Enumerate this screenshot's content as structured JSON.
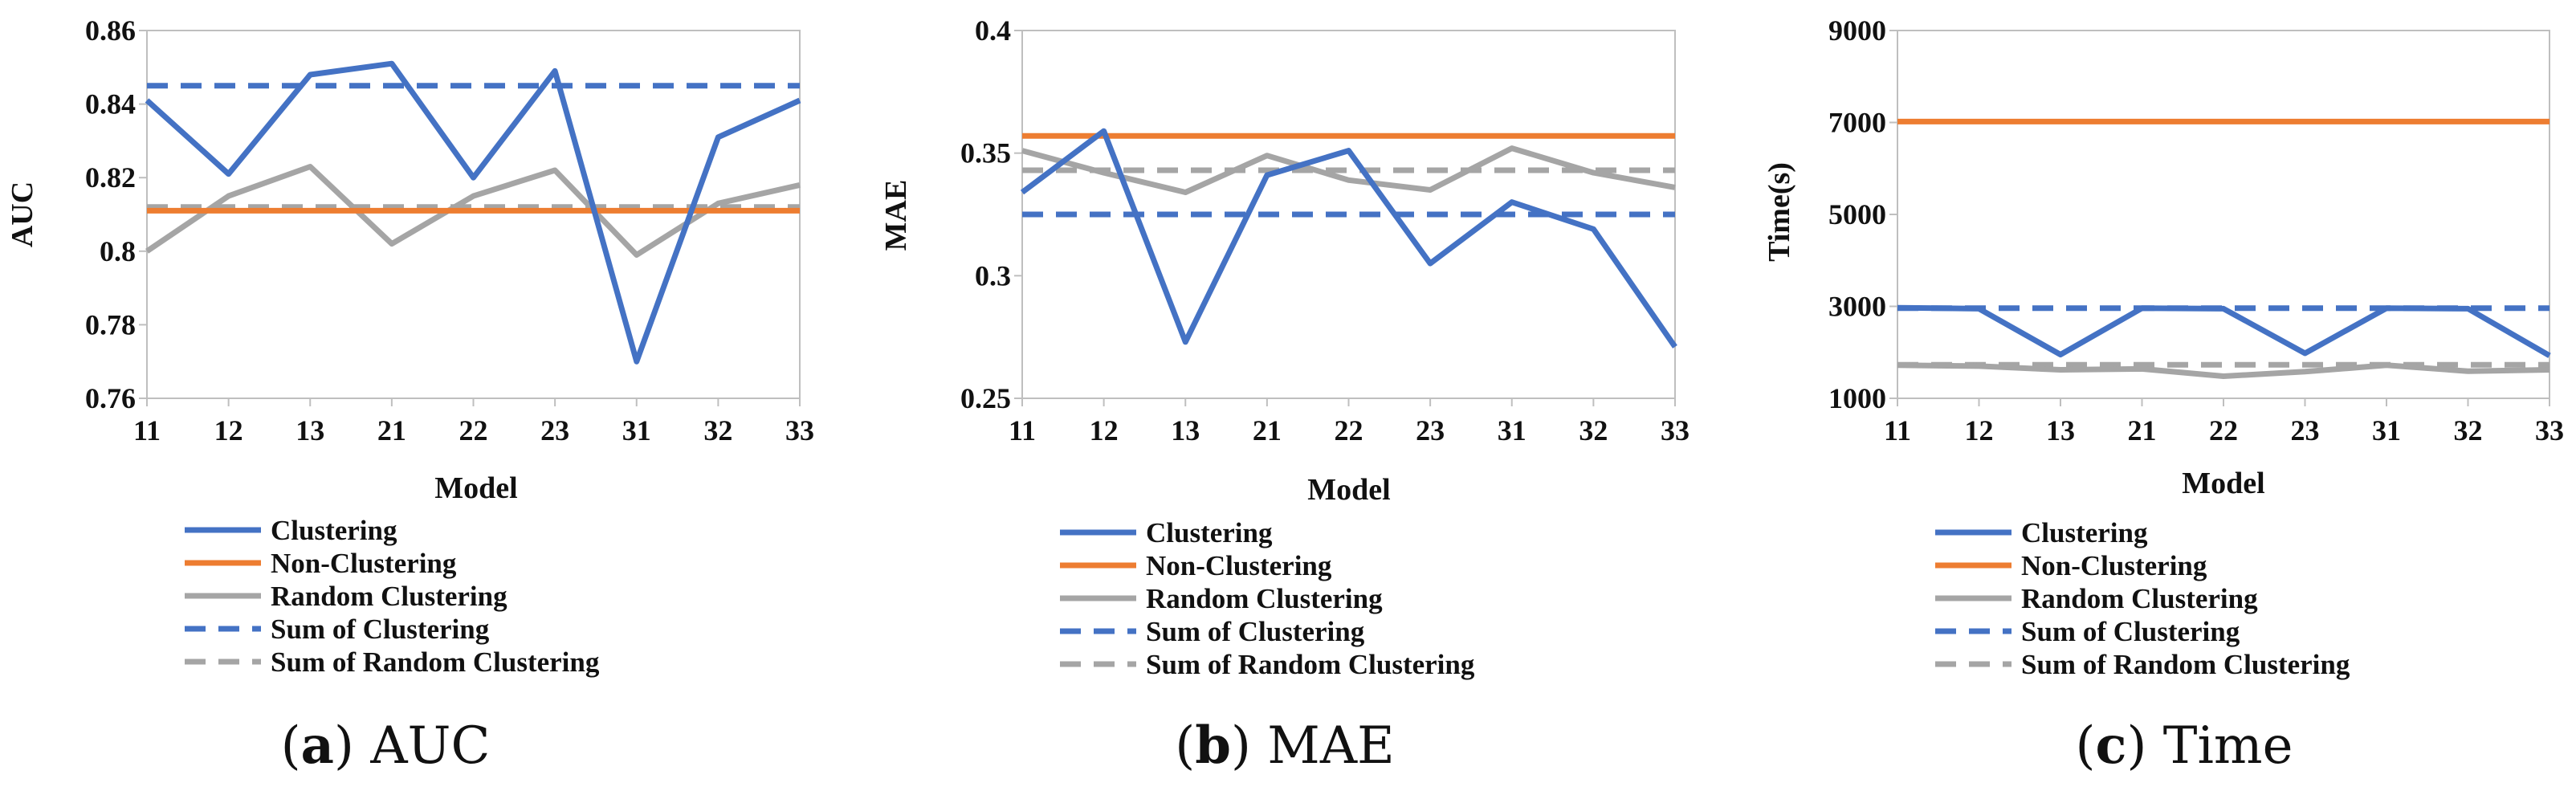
{
  "colors": {
    "clustering": "#4472C4",
    "non_clustering": "#ED7D31",
    "random_clustering": "#A5A5A5",
    "axis": "#bfbfbf"
  },
  "legend": [
    {
      "key": "clustering",
      "label": "Clustering",
      "color": "#4472C4",
      "dash": false
    },
    {
      "key": "non_clustering",
      "label": "Non-Clustering",
      "color": "#ED7D31",
      "dash": false
    },
    {
      "key": "random_clustering",
      "label": "Random Clustering",
      "color": "#A5A5A5",
      "dash": false
    },
    {
      "key": "sum_clustering",
      "label": "Sum of Clustering",
      "color": "#4472C4",
      "dash": true
    },
    {
      "key": "sum_random_clustering",
      "label": "Sum of Random Clustering",
      "color": "#A5A5A5",
      "dash": true
    }
  ],
  "chart_data": [
    {
      "type": "line",
      "panel": "a",
      "caption_letter": "(a)",
      "caption_text": "AUC",
      "xlabel": "Model",
      "ylabel": "AUC",
      "categories": [
        "11",
        "12",
        "13",
        "21",
        "22",
        "23",
        "31",
        "32",
        "33"
      ],
      "ylim": [
        0.76,
        0.86
      ],
      "yticks": [
        0.76,
        0.78,
        0.8,
        0.82,
        0.84,
        0.86
      ],
      "ytick_labels": [
        "0.76",
        "0.78",
        "0.8",
        "0.82",
        "0.84",
        "0.86"
      ],
      "series": [
        {
          "name": "Clustering",
          "values": [
            0.841,
            0.821,
            0.848,
            0.851,
            0.82,
            0.849,
            0.77,
            0.831,
            0.841
          ]
        },
        {
          "name": "Non-Clustering",
          "values": [
            0.811,
            0.811,
            0.811,
            0.811,
            0.811,
            0.811,
            0.811,
            0.811,
            0.811
          ]
        },
        {
          "name": "Random Clustering",
          "values": [
            0.8,
            0.815,
            0.823,
            0.802,
            0.815,
            0.822,
            0.799,
            0.813,
            0.818
          ]
        },
        {
          "name": "Sum of Clustering",
          "values": [
            0.845,
            0.845,
            0.845,
            0.845,
            0.845,
            0.845,
            0.845,
            0.845,
            0.845
          ]
        },
        {
          "name": "Sum of Random Clustering",
          "values": [
            0.812,
            0.812,
            0.812,
            0.812,
            0.812,
            0.812,
            0.812,
            0.812,
            0.812
          ]
        }
      ]
    },
    {
      "type": "line",
      "panel": "b",
      "caption_letter": "(b)",
      "caption_text": "MAE",
      "xlabel": "Model",
      "ylabel": "MAE",
      "categories": [
        "11",
        "12",
        "13",
        "21",
        "22",
        "23",
        "31",
        "32",
        "33"
      ],
      "ylim": [
        0.25,
        0.4
      ],
      "yticks": [
        0.25,
        0.3,
        0.35,
        0.4
      ],
      "ytick_labels": [
        "0.25",
        "0.3",
        "0.35",
        "0.4"
      ],
      "series": [
        {
          "name": "Clustering",
          "values": [
            0.334,
            0.359,
            0.273,
            0.341,
            0.351,
            0.305,
            0.33,
            0.319,
            0.271
          ]
        },
        {
          "name": "Non-Clustering",
          "values": [
            0.357,
            0.357,
            0.357,
            0.357,
            0.357,
            0.357,
            0.357,
            0.357,
            0.357
          ]
        },
        {
          "name": "Random Clustering",
          "values": [
            0.351,
            0.342,
            0.334,
            0.349,
            0.339,
            0.335,
            0.352,
            0.342,
            0.336
          ]
        },
        {
          "name": "Sum of Clustering",
          "values": [
            0.325,
            0.325,
            0.325,
            0.325,
            0.325,
            0.325,
            0.325,
            0.325,
            0.325
          ]
        },
        {
          "name": "Sum of Random Clustering",
          "values": [
            0.343,
            0.343,
            0.343,
            0.343,
            0.343,
            0.343,
            0.343,
            0.343,
            0.343
          ]
        }
      ]
    },
    {
      "type": "line",
      "panel": "c",
      "caption_letter": "(c)",
      "caption_text": "Time",
      "xlabel": "Model",
      "ylabel": "Time(s)",
      "categories": [
        "11",
        "12",
        "13",
        "21",
        "22",
        "23",
        "31",
        "32",
        "33"
      ],
      "ylim": [
        1000,
        9000
      ],
      "yticks": [
        1000,
        3000,
        5000,
        7000,
        9000
      ],
      "ytick_labels": [
        "1000",
        "3000",
        "5000",
        "7000",
        "9000"
      ],
      "series": [
        {
          "name": "Clustering",
          "values": [
            2970,
            2950,
            1950,
            2960,
            2950,
            1980,
            2960,
            2950,
            1930
          ]
        },
        {
          "name": "Non-Clustering",
          "values": [
            7020,
            7020,
            7020,
            7020,
            7020,
            7020,
            7020,
            7020,
            7020
          ]
        },
        {
          "name": "Random Clustering",
          "values": [
            1720,
            1700,
            1620,
            1640,
            1480,
            1580,
            1720,
            1590,
            1620
          ]
        },
        {
          "name": "Sum of Clustering",
          "values": [
            2960,
            2960,
            2960,
            2960,
            2960,
            2960,
            2960,
            2960,
            2960
          ]
        },
        {
          "name": "Sum of Random Clustering",
          "values": [
            1730,
            1730,
            1730,
            1730,
            1730,
            1730,
            1730,
            1730,
            1730
          ]
        }
      ]
    }
  ]
}
